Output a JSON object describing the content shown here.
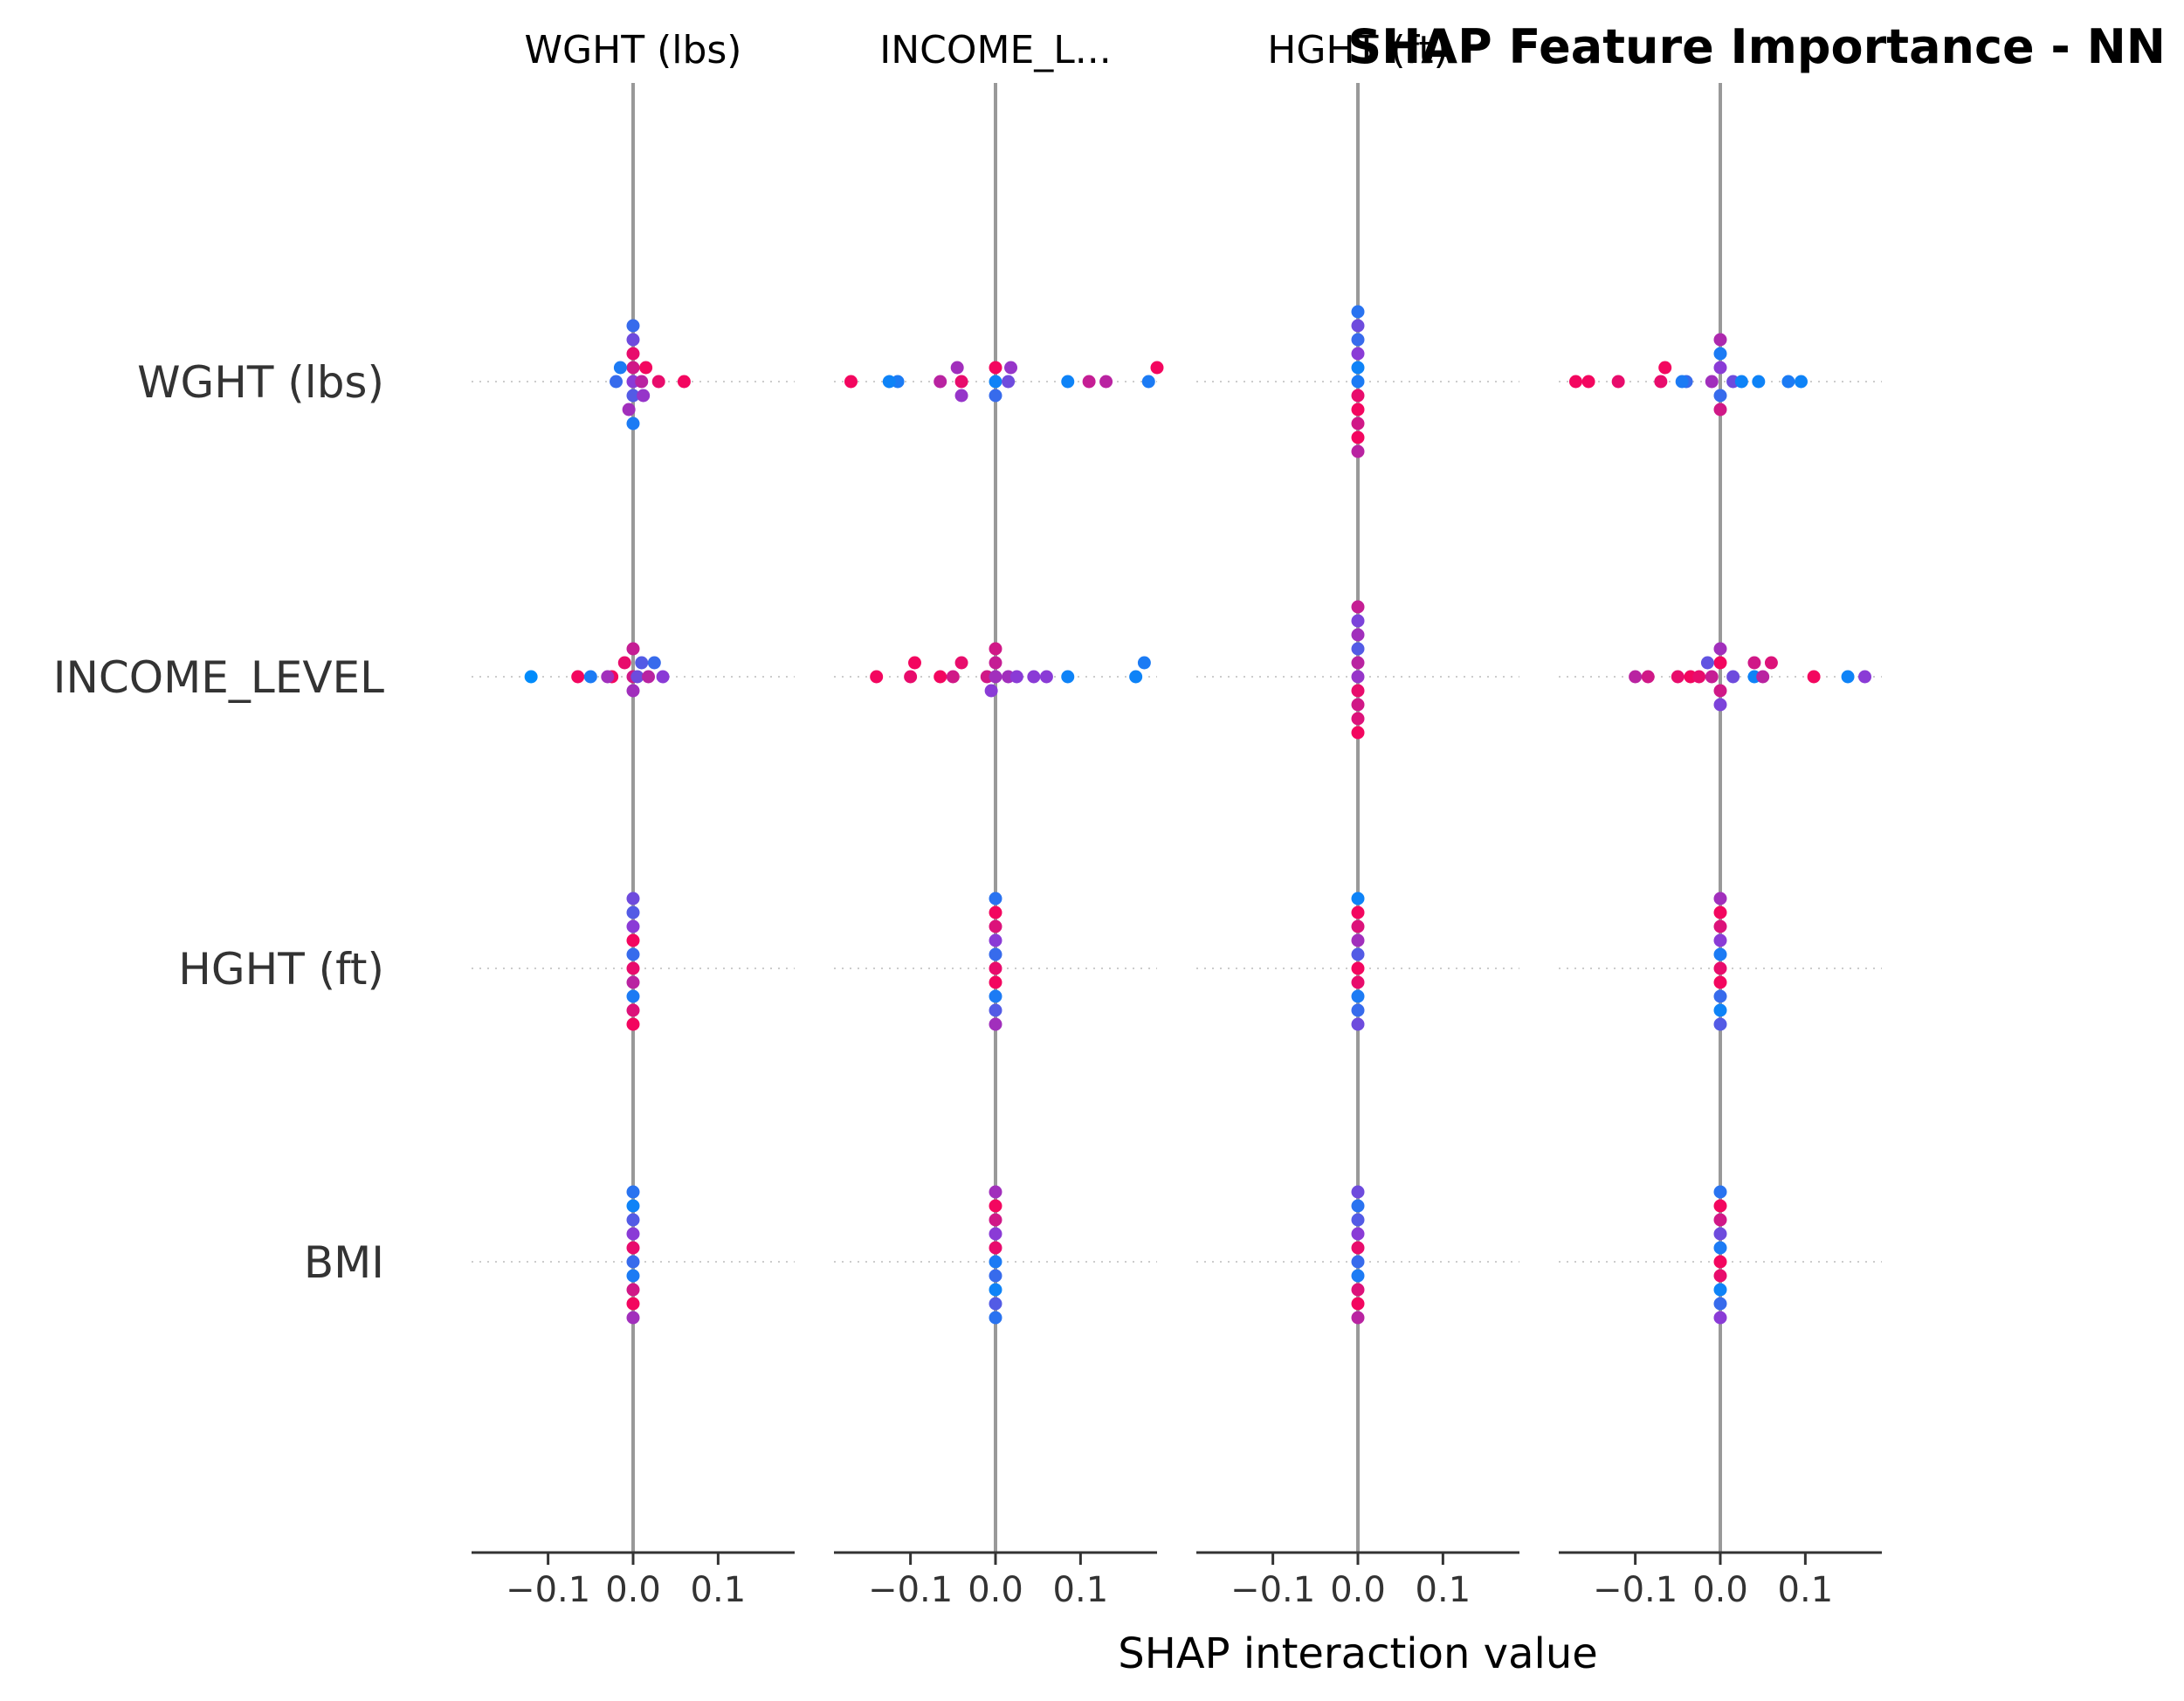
{
  "chart_data": {
    "type": "scatter",
    "title": "SHAP Feature Importance - NN",
    "xlabel": "SHAP interaction value",
    "column_titles": [
      "WGHT (lbs)",
      "INCOME_L...",
      "HGHT (ft)",
      ""
    ],
    "row_labels": [
      "WGHT (lbs)",
      "INCOME_LEVEL",
      "HGHT (ft)",
      "BMI"
    ],
    "xlim": [
      -0.19,
      0.19
    ],
    "x_ticks": [
      -0.1,
      0.0,
      0.1
    ],
    "x_tick_labels": [
      "−0.1",
      "0.0",
      "0.1"
    ],
    "grid": false,
    "colors": {
      "low": "#008bfb",
      "mid": "#8a3bd6",
      "high": "#ff0052",
      "zero_line": "#999999",
      "row_guide": "#cccccc",
      "axis": "#333333",
      "text": "#333333"
    },
    "panels": [
      {
        "feature": "WGHT (lbs)",
        "rows": [
          {
            "row": "WGHT (lbs)",
            "points": [
              [
                0.0,
                0.5
              ],
              [
                0.0,
                0.8
              ],
              [
                -0.02,
                0.2
              ],
              [
                -0.015,
                0.1
              ],
              [
                0.0,
                0.3
              ],
              [
                0.0,
                0.9
              ],
              [
                0.01,
                0.7
              ],
              [
                0.015,
                0.95
              ],
              [
                0.03,
                0.9
              ],
              [
                0.06,
                0.95
              ],
              [
                -0.005,
                0.6
              ],
              [
                0.0,
                0.4
              ],
              [
                0.0,
                0.1
              ],
              [
                0.012,
                0.55
              ],
              [
                0.0,
                0.2
              ]
            ]
          },
          {
            "row": "INCOME_LEVEL",
            "points": [
              [
                -0.12,
                0.0
              ],
              [
                -0.065,
                0.95
              ],
              [
                -0.05,
                0.1
              ],
              [
                -0.025,
                0.95
              ],
              [
                -0.03,
                0.6
              ],
              [
                0.0,
                0.8
              ],
              [
                0.005,
                0.4
              ],
              [
                0.01,
                0.3
              ],
              [
                0.018,
                0.7
              ],
              [
                0.025,
                0.2
              ],
              [
                0.035,
                0.5
              ],
              [
                -0.01,
                0.9
              ],
              [
                0.0,
                0.6
              ],
              [
                0.0,
                0.75
              ]
            ]
          },
          {
            "row": "HGHT (ft)",
            "points": [
              [
                0.0,
                0.9
              ],
              [
                0.0,
                0.2
              ],
              [
                0.0,
                0.7
              ],
              [
                0.0,
                0.95
              ],
              [
                0.0,
                0.1
              ],
              [
                0.0,
                0.5
              ],
              [
                0.0,
                0.85
              ],
              [
                0.0,
                0.3
              ],
              [
                0.0,
                0.95
              ],
              [
                0.0,
                0.4
              ]
            ]
          },
          {
            "row": "BMI",
            "points": [
              [
                0.0,
                0.2
              ],
              [
                0.0,
                0.9
              ],
              [
                0.0,
                0.1
              ],
              [
                0.0,
                0.5
              ],
              [
                0.0,
                0.8
              ],
              [
                0.0,
                0.3
              ],
              [
                0.0,
                0.95
              ],
              [
                0.0,
                0.05
              ],
              [
                0.0,
                0.6
              ],
              [
                0.0,
                0.15
              ]
            ]
          }
        ]
      },
      {
        "feature": "INCOME_L...",
        "rows": [
          {
            "row": "WGHT (lbs)",
            "points": [
              [
                -0.17,
                0.95
              ],
              [
                -0.115,
                0.1
              ],
              [
                -0.125,
                0.05
              ],
              [
                -0.065,
                0.7
              ],
              [
                -0.04,
                0.9
              ],
              [
                -0.045,
                0.6
              ],
              [
                -0.04,
                0.55
              ],
              [
                0.0,
                0.05
              ],
              [
                0.0,
                0.95
              ],
              [
                0.015,
                0.4
              ],
              [
                0.085,
                0.05
              ],
              [
                0.11,
                0.75
              ],
              [
                0.13,
                0.7
              ],
              [
                0.18,
                0.1
              ],
              [
                0.19,
                0.95
              ],
              [
                0.0,
                0.2
              ],
              [
                0.018,
                0.55
              ]
            ]
          },
          {
            "row": "INCOME_LEVEL",
            "points": [
              [
                -0.14,
                0.95
              ],
              [
                -0.1,
                0.9
              ],
              [
                -0.095,
                0.95
              ],
              [
                -0.065,
                0.95
              ],
              [
                -0.05,
                0.8
              ],
              [
                -0.04,
                0.9
              ],
              [
                -0.01,
                0.8
              ],
              [
                0.0,
                0.6
              ],
              [
                0.0,
                0.75
              ],
              [
                0.015,
                0.6
              ],
              [
                0.025,
                0.5
              ],
              [
                0.045,
                0.5
              ],
              [
                0.085,
                0.05
              ],
              [
                0.165,
                0.05
              ],
              [
                0.175,
                0.1
              ],
              [
                -0.005,
                0.5
              ],
              [
                0.06,
                0.5
              ],
              [
                0.0,
                0.8
              ]
            ]
          },
          {
            "row": "HGHT (ft)",
            "points": [
              [
                0.0,
                0.9
              ],
              [
                0.0,
                0.2
              ],
              [
                0.0,
                0.95
              ],
              [
                0.0,
                0.5
              ],
              [
                0.0,
                0.1
              ],
              [
                0.0,
                0.85
              ],
              [
                0.0,
                0.3
              ],
              [
                0.0,
                0.95
              ],
              [
                0.0,
                0.6
              ],
              [
                0.0,
                0.15
              ]
            ]
          },
          {
            "row": "BMI",
            "points": [
              [
                0.0,
                0.1
              ],
              [
                0.0,
                0.9
              ],
              [
                0.0,
                0.2
              ],
              [
                0.0,
                0.5
              ],
              [
                0.0,
                0.05
              ],
              [
                0.0,
                0.8
              ],
              [
                0.0,
                0.3
              ],
              [
                0.0,
                0.95
              ],
              [
                0.0,
                0.15
              ],
              [
                0.0,
                0.6
              ]
            ]
          }
        ]
      },
      {
        "feature": "HGHT (ft)",
        "rows": [
          {
            "row": "WGHT (lbs)",
            "points": [
              [
                0.0,
                0.1
              ],
              [
                0.0,
                0.05
              ],
              [
                0.0,
                0.9
              ],
              [
                0.0,
                0.5
              ],
              [
                0.0,
                0.95
              ],
              [
                0.0,
                0.2
              ],
              [
                0.0,
                0.8
              ],
              [
                0.0,
                0.4
              ],
              [
                0.0,
                0.95
              ],
              [
                0.0,
                0.15
              ],
              [
                0.0,
                0.7
              ]
            ]
          },
          {
            "row": "INCOME_LEVEL",
            "points": [
              [
                0.0,
                0.55
              ],
              [
                0.0,
                0.7
              ],
              [
                0.0,
                0.9
              ],
              [
                0.0,
                0.3
              ],
              [
                0.0,
                0.8
              ],
              [
                0.0,
                0.6
              ],
              [
                0.0,
                0.85
              ],
              [
                0.0,
                0.45
              ],
              [
                0.0,
                0.95
              ],
              [
                0.0,
                0.75
              ]
            ]
          },
          {
            "row": "HGHT (ft)",
            "points": [
              [
                0.0,
                0.95
              ],
              [
                0.0,
                0.3
              ],
              [
                0.0,
                0.9
              ],
              [
                0.0,
                0.6
              ],
              [
                0.0,
                0.1
              ],
              [
                0.0,
                0.85
              ],
              [
                0.0,
                0.2
              ],
              [
                0.0,
                0.95
              ],
              [
                0.0,
                0.4
              ],
              [
                0.0,
                0.05
              ]
            ]
          },
          {
            "row": "BMI",
            "points": [
              [
                0.0,
                0.2
              ],
              [
                0.0,
                0.9
              ],
              [
                0.0,
                0.1
              ],
              [
                0.0,
                0.5
              ],
              [
                0.0,
                0.85
              ],
              [
                0.0,
                0.3
              ],
              [
                0.0,
                0.95
              ],
              [
                0.0,
                0.15
              ],
              [
                0.0,
                0.7
              ],
              [
                0.0,
                0.4
              ]
            ]
          }
        ]
      },
      {
        "feature": "",
        "rows": [
          {
            "row": "WGHT (lbs)",
            "points": [
              [
                -0.17,
                0.95
              ],
              [
                -0.155,
                0.95
              ],
              [
                -0.12,
                0.9
              ],
              [
                -0.07,
                0.9
              ],
              [
                -0.065,
                0.95
              ],
              [
                -0.04,
                0.2
              ],
              [
                -0.045,
                0.1
              ],
              [
                -0.01,
                0.6
              ],
              [
                0.0,
                0.5
              ],
              [
                0.0,
                0.2
              ],
              [
                0.0,
                0.1
              ],
              [
                0.015,
                0.4
              ],
              [
                0.025,
                0.05
              ],
              [
                0.045,
                0.05
              ],
              [
                0.08,
                0.1
              ],
              [
                0.095,
                0.05
              ],
              [
                0.0,
                0.8
              ],
              [
                0.0,
                0.65
              ]
            ]
          },
          {
            "row": "INCOME_LEVEL",
            "points": [
              [
                -0.1,
                0.7
              ],
              [
                -0.085,
                0.8
              ],
              [
                -0.05,
                0.9
              ],
              [
                -0.035,
                0.95
              ],
              [
                -0.025,
                0.9
              ],
              [
                -0.01,
                0.75
              ],
              [
                0.0,
                0.95
              ],
              [
                0.0,
                0.8
              ],
              [
                0.0,
                0.6
              ],
              [
                0.015,
                0.4
              ],
              [
                0.04,
                0.05
              ],
              [
                0.04,
                0.8
              ],
              [
                0.05,
                0.7
              ],
              [
                0.06,
                0.85
              ],
              [
                0.11,
                0.95
              ],
              [
                0.15,
                0.05
              ],
              [
                0.17,
                0.5
              ],
              [
                -0.015,
                0.35
              ],
              [
                0.0,
                0.45
              ]
            ]
          },
          {
            "row": "HGHT (ft)",
            "points": [
              [
                0.0,
                0.9
              ],
              [
                0.0,
                0.1
              ],
              [
                0.0,
                0.95
              ],
              [
                0.0,
                0.5
              ],
              [
                0.0,
                0.2
              ],
              [
                0.0,
                0.85
              ],
              [
                0.0,
                0.05
              ],
              [
                0.0,
                0.95
              ],
              [
                0.0,
                0.3
              ],
              [
                0.0,
                0.6
              ]
            ]
          },
          {
            "row": "BMI",
            "points": [
              [
                0.0,
                0.95
              ],
              [
                0.0,
                0.1
              ],
              [
                0.0,
                0.9
              ],
              [
                0.0,
                0.4
              ],
              [
                0.0,
                0.05
              ],
              [
                0.0,
                0.8
              ],
              [
                0.0,
                0.2
              ],
              [
                0.0,
                0.95
              ],
              [
                0.0,
                0.5
              ],
              [
                0.0,
                0.15
              ]
            ]
          }
        ]
      }
    ]
  }
}
